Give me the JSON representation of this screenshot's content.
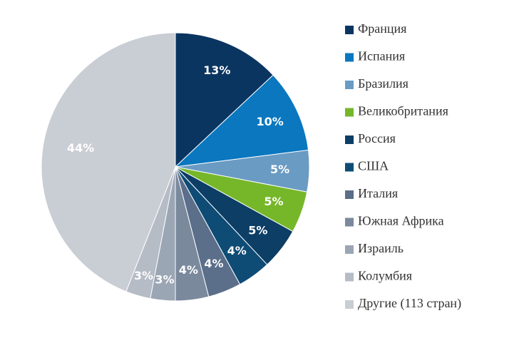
{
  "chart_data": {
    "type": "pie",
    "categories": [
      "Франция",
      "Испания",
      "Бразилия",
      "Великобритания",
      "Россия",
      "США",
      "Италия",
      "Южная Африка",
      "Израиль",
      "Колумбия",
      "Другие (113 стран)"
    ],
    "values": [
      13,
      10,
      5,
      5,
      5,
      4,
      4,
      4,
      3,
      3,
      44
    ],
    "value_labels": [
      "13%",
      "10%",
      "5%",
      "5%",
      "5%",
      "4%",
      "4%",
      "4%",
      "3%",
      "3%",
      "44%"
    ],
    "colors": [
      "#0b3561",
      "#0a77bf",
      "#6a9bc3",
      "#76b72a",
      "#0c3e66",
      "#0e4c76",
      "#5b6e8a",
      "#7b899d",
      "#9ba6b4",
      "#b5bcc6",
      "#c9cdd4"
    ]
  }
}
